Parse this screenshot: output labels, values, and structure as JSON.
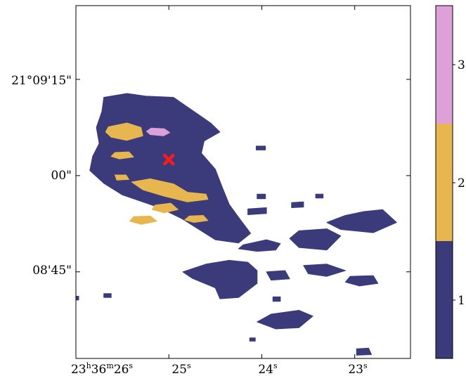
{
  "chart_data": {
    "type": "heatmap",
    "title": "",
    "xlabel": "",
    "ylabel": "",
    "grid": false,
    "x_axis": {
      "ticks": [
        {
          "label": "23h36m26s",
          "main": "23",
          "sup1": "h",
          "mid": "36",
          "sup2": "m",
          "tail": "26",
          "sup3": "s",
          "ra_sec": 26
        },
        {
          "label": "25s",
          "main": "25",
          "sup": "s",
          "ra_sec": 25
        },
        {
          "label": "24s",
          "main": "24",
          "sup": "s",
          "ra_sec": 24
        },
        {
          "label": "23s",
          "main": "23",
          "sup": "s",
          "ra_sec": 23
        }
      ],
      "range_ra_sec": [
        26.0,
        22.4
      ]
    },
    "y_axis": {
      "ticks": [
        {
          "label": "21°09'15\"",
          "dec_arcsec": 15
        },
        {
          "label": "00\"",
          "dec_arcsec": 0
        },
        {
          "label": "08'45\"",
          "dec_arcsec": -15
        }
      ],
      "range_dec_arcsec": [
        -28.5,
        26.5
      ]
    },
    "colorbar": {
      "levels": [
        {
          "value": 1,
          "label": "1",
          "color": "#3b3b7c"
        },
        {
          "value": 2,
          "label": "2",
          "color": "#e8b64e"
        },
        {
          "value": 3,
          "label": "3",
          "color": "#dda0d8"
        }
      ]
    },
    "marker": {
      "symbol": "x",
      "color": "#ff1a1a",
      "ra_sec": 25.0,
      "dec_arcsec": 2.5
    },
    "regions": [
      {
        "level": 1,
        "name": "main-body",
        "points": [
          [
            25.7,
            12.2
          ],
          [
            25.45,
            12.8
          ],
          [
            25.25,
            12.4
          ],
          [
            24.95,
            12.2
          ],
          [
            24.75,
            10.2
          ],
          [
            24.55,
            8.2
          ],
          [
            24.45,
            6.8
          ],
          [
            24.62,
            5.4
          ],
          [
            24.65,
            3.5
          ],
          [
            24.5,
            1.0
          ],
          [
            24.42,
            -2.0
          ],
          [
            24.35,
            -4.5
          ],
          [
            24.25,
            -6.5
          ],
          [
            24.12,
            -9.0
          ],
          [
            24.25,
            -10.5
          ],
          [
            24.5,
            -10.0
          ],
          [
            24.85,
            -6.8
          ],
          [
            25.1,
            -5.0
          ],
          [
            25.3,
            -4.0
          ],
          [
            25.5,
            -3.0
          ],
          [
            25.7,
            -1.2
          ],
          [
            25.85,
            0.8
          ],
          [
            25.82,
            3.0
          ],
          [
            25.75,
            5.0
          ],
          [
            25.78,
            7.5
          ],
          [
            25.72,
            10.0
          ]
        ]
      },
      {
        "level": 1,
        "name": "blob-lower-mid",
        "points": [
          [
            24.85,
            -15.0
          ],
          [
            24.6,
            -13.8
          ],
          [
            24.35,
            -13.2
          ],
          [
            24.15,
            -13.5
          ],
          [
            24.05,
            -14.8
          ],
          [
            24.05,
            -16.8
          ],
          [
            24.25,
            -19.0
          ],
          [
            24.45,
            -19.2
          ],
          [
            24.5,
            -17.5
          ],
          [
            24.75,
            -16.0
          ]
        ]
      },
      {
        "level": 1,
        "name": "blob-mid",
        "points": [
          [
            24.2,
            -10.8
          ],
          [
            23.95,
            -10.0
          ],
          [
            23.8,
            -10.6
          ],
          [
            23.85,
            -11.6
          ],
          [
            24.05,
            -11.8
          ],
          [
            24.25,
            -11.4
          ]
        ]
      },
      {
        "level": 1,
        "name": "blob-right-mid",
        "points": [
          [
            23.6,
            -8.6
          ],
          [
            23.3,
            -8.3
          ],
          [
            23.15,
            -9.4
          ],
          [
            23.3,
            -11.6
          ],
          [
            23.6,
            -11.2
          ],
          [
            23.7,
            -9.8
          ]
        ]
      },
      {
        "level": 1,
        "name": "blob-right",
        "points": [
          [
            22.9,
            -5.6
          ],
          [
            22.7,
            -5.3
          ],
          [
            22.55,
            -7.3
          ],
          [
            22.8,
            -8.9
          ],
          [
            23.15,
            -8.4
          ],
          [
            23.3,
            -7.3
          ],
          [
            23.1,
            -6.2
          ]
        ]
      },
      {
        "level": 1,
        "name": "blob-lower-right",
        "points": [
          [
            23.55,
            -14.0
          ],
          [
            23.3,
            -13.8
          ],
          [
            23.1,
            -14.8
          ],
          [
            23.3,
            -15.7
          ],
          [
            23.5,
            -15.3
          ]
        ]
      },
      {
        "level": 1,
        "name": "blob-far-right",
        "points": [
          [
            23.05,
            -15.7
          ],
          [
            22.8,
            -15.6
          ],
          [
            22.75,
            -16.8
          ],
          [
            22.95,
            -17.2
          ],
          [
            23.1,
            -16.6
          ]
        ]
      },
      {
        "level": 1,
        "name": "blob-lower-small",
        "points": [
          [
            23.95,
            -15.0
          ],
          [
            23.75,
            -14.8
          ],
          [
            23.7,
            -16.1
          ],
          [
            23.9,
            -16.3
          ]
        ]
      },
      {
        "level": 1,
        "name": "blob-bottom",
        "points": [
          [
            23.9,
            -21.6
          ],
          [
            23.6,
            -21.0
          ],
          [
            23.45,
            -21.9
          ],
          [
            23.6,
            -23.7
          ],
          [
            23.85,
            -23.9
          ],
          [
            24.05,
            -22.8
          ]
        ]
      },
      {
        "level": 1,
        "name": "blob-small-a",
        "points": [
          [
            24.15,
            -5.2
          ],
          [
            23.95,
            -5.0
          ],
          [
            23.95,
            -5.9
          ],
          [
            24.15,
            -6.1
          ]
        ]
      },
      {
        "level": 1,
        "name": "blob-small-b",
        "points": [
          [
            22.98,
            -27.0
          ],
          [
            22.85,
            -26.9
          ],
          [
            22.82,
            -27.9
          ],
          [
            22.98,
            -28.0
          ]
        ]
      },
      {
        "level": 1,
        "name": "blob-small-c",
        "points": [
          [
            24.05,
            -2.9
          ],
          [
            23.96,
            -2.9
          ],
          [
            23.96,
            -3.6
          ],
          [
            24.05,
            -3.6
          ]
        ]
      },
      {
        "level": 1,
        "name": "blob-small-d",
        "points": [
          [
            23.68,
            -4.2
          ],
          [
            23.55,
            -4.1
          ],
          [
            23.55,
            -4.9
          ],
          [
            23.68,
            -5.0
          ]
        ]
      },
      {
        "level": 1,
        "name": "blob-small-e",
        "points": [
          [
            24.06,
            4.6
          ],
          [
            23.96,
            4.6
          ],
          [
            23.96,
            4.0
          ],
          [
            24.06,
            4.0
          ]
        ]
      },
      {
        "level": 1,
        "name": "blob-small-f",
        "points": [
          [
            23.88,
            -18.9
          ],
          [
            23.8,
            -18.9
          ],
          [
            23.8,
            -19.6
          ],
          [
            23.88,
            -19.6
          ]
        ]
      },
      {
        "level": 1,
        "name": "blob-small-g",
        "points": [
          [
            24.13,
            -25.3
          ],
          [
            24.07,
            -25.3
          ],
          [
            24.07,
            -25.8
          ],
          [
            24.13,
            -25.8
          ]
        ]
      },
      {
        "level": 1,
        "name": "blob-small-h",
        "points": [
          [
            25.7,
            -18.4
          ],
          [
            25.62,
            -18.4
          ],
          [
            25.62,
            -19.0
          ],
          [
            25.7,
            -19.0
          ]
        ]
      },
      {
        "level": 1,
        "name": "blob-small-i",
        "points": [
          [
            26.05,
            -18.8
          ],
          [
            25.97,
            -18.8
          ],
          [
            25.97,
            -19.4
          ],
          [
            26.05,
            -19.4
          ]
        ]
      },
      {
        "level": 1,
        "name": "blob-small-j",
        "points": [
          [
            23.42,
            -2.9
          ],
          [
            23.34,
            -2.9
          ],
          [
            23.34,
            -3.5
          ],
          [
            23.42,
            -3.5
          ]
        ]
      },
      {
        "level": 2,
        "name": "gold-a",
        "points": [
          [
            25.65,
            7.6
          ],
          [
            25.45,
            8.2
          ],
          [
            25.3,
            7.5
          ],
          [
            25.28,
            6.2
          ],
          [
            25.45,
            5.5
          ],
          [
            25.62,
            6.0
          ],
          [
            25.68,
            6.8
          ]
        ]
      },
      {
        "level": 2,
        "name": "gold-b",
        "points": [
          [
            25.4,
            -1.0
          ],
          [
            25.2,
            -0.5
          ],
          [
            24.95,
            -1.3
          ],
          [
            24.8,
            -2.6
          ],
          [
            24.6,
            -2.9
          ],
          [
            24.58,
            -3.7
          ],
          [
            24.8,
            -4.1
          ],
          [
            25.05,
            -3.2
          ],
          [
            25.28,
            -2.2
          ]
        ]
      },
      {
        "level": 2,
        "name": "gold-c",
        "points": [
          [
            25.38,
            -6.4
          ],
          [
            25.2,
            -6.3
          ],
          [
            25.13,
            -7.1
          ],
          [
            25.3,
            -7.6
          ],
          [
            25.42,
            -7.1
          ]
        ]
      },
      {
        "level": 2,
        "name": "gold-d",
        "points": [
          [
            25.15,
            -4.6
          ],
          [
            24.98,
            -4.3
          ],
          [
            24.9,
            -5.3
          ],
          [
            25.05,
            -5.8
          ],
          [
            25.18,
            -5.3
          ]
        ]
      },
      {
        "level": 2,
        "name": "gold-e",
        "points": [
          [
            24.78,
            -6.3
          ],
          [
            24.63,
            -6.2
          ],
          [
            24.58,
            -7.0
          ],
          [
            24.73,
            -7.3
          ],
          [
            24.83,
            -6.9
          ]
        ]
      },
      {
        "level": 2,
        "name": "gold-f",
        "points": [
          [
            25.58,
            3.6
          ],
          [
            25.43,
            3.7
          ],
          [
            25.38,
            2.9
          ],
          [
            25.53,
            2.6
          ],
          [
            25.62,
            3.0
          ]
        ]
      },
      {
        "level": 2,
        "name": "gold-g",
        "points": [
          [
            25.58,
            0.1
          ],
          [
            25.46,
            0.1
          ],
          [
            25.43,
            -0.6
          ],
          [
            25.56,
            -0.7
          ]
        ]
      },
      {
        "level": 3,
        "name": "pink-a",
        "points": [
          [
            25.19,
            7.4
          ],
          [
            25.05,
            7.3
          ],
          [
            24.99,
            6.7
          ],
          [
            25.06,
            6.2
          ],
          [
            25.2,
            6.4
          ],
          [
            25.24,
            6.9
          ]
        ]
      }
    ]
  }
}
